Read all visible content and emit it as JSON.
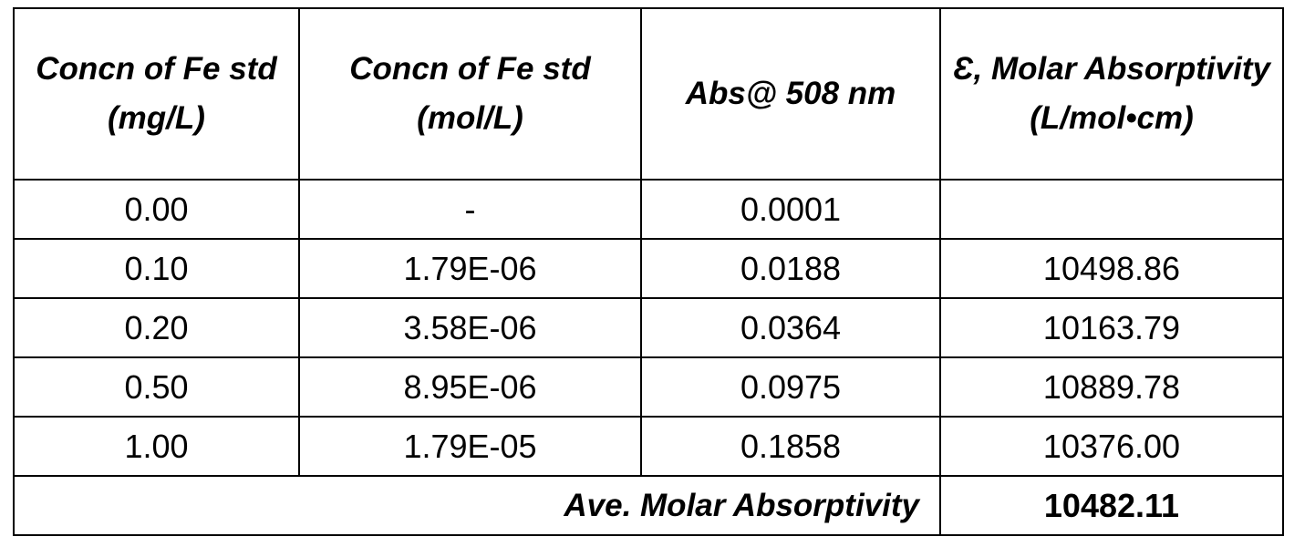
{
  "table": {
    "headers": [
      "Concn of Fe std (mg/L)",
      "Concn of Fe std (mol/L)",
      "Abs@ 508 nm",
      "Ɛ, Molar Absorptivity (L/mol•cm)"
    ],
    "rows": [
      [
        "0.00",
        "-",
        "0.0001",
        ""
      ],
      [
        "0.10",
        "1.79E-06",
        "0.0188",
        "10498.86"
      ],
      [
        "0.20",
        "3.58E-06",
        "0.0364",
        "10163.79"
      ],
      [
        "0.50",
        "8.95E-06",
        "0.0975",
        "10889.78"
      ],
      [
        "1.00",
        "1.79E-05",
        "0.1858",
        "10376.00"
      ]
    ],
    "footer": {
      "label": "Ave. Molar Absorptivity",
      "value": "10482.11"
    }
  }
}
